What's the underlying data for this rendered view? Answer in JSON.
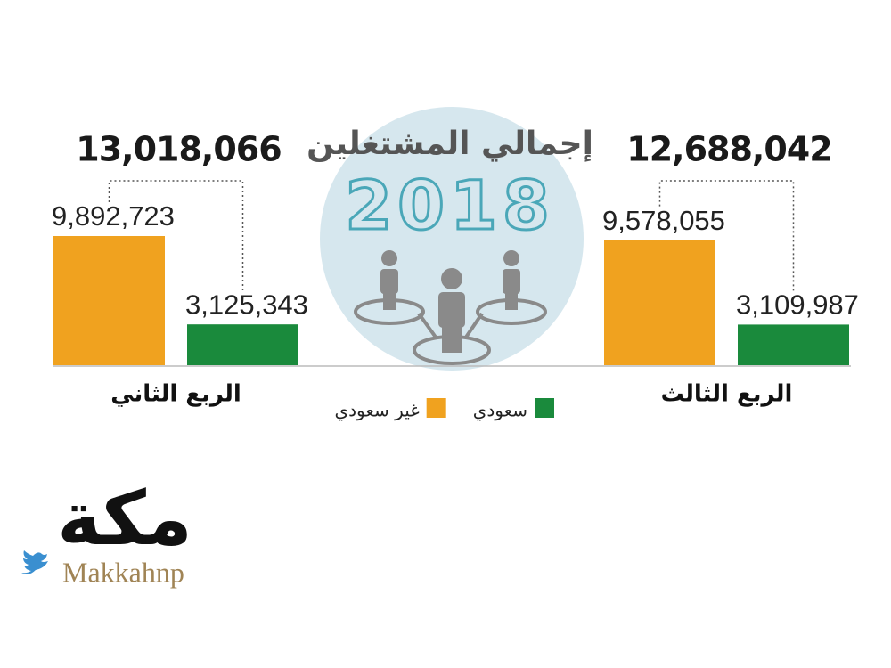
{
  "chart_data": {
    "type": "bar",
    "title": "إجمالي المشتغلين",
    "subtitle": "2018",
    "categories": [
      "الربع الثاني",
      "الربع الثالث"
    ],
    "series": [
      {
        "name": "غير سعودي",
        "color": "#f0a21f",
        "values": [
          9892723,
          9578055
        ],
        "value_labels": [
          "9,892,723",
          "9,578,055"
        ]
      },
      {
        "name": "سعودي",
        "color": "#1a8a3c",
        "values": [
          3125343,
          3109987
        ],
        "value_labels": [
          "3,125,343",
          "3,109,987"
        ]
      }
    ],
    "totals": [
      13018066,
      12688042
    ],
    "total_labels": [
      "13,018,066",
      "12,688,042"
    ]
  },
  "logo": {
    "arabic": "مكة",
    "handle": "Makkahnp"
  }
}
